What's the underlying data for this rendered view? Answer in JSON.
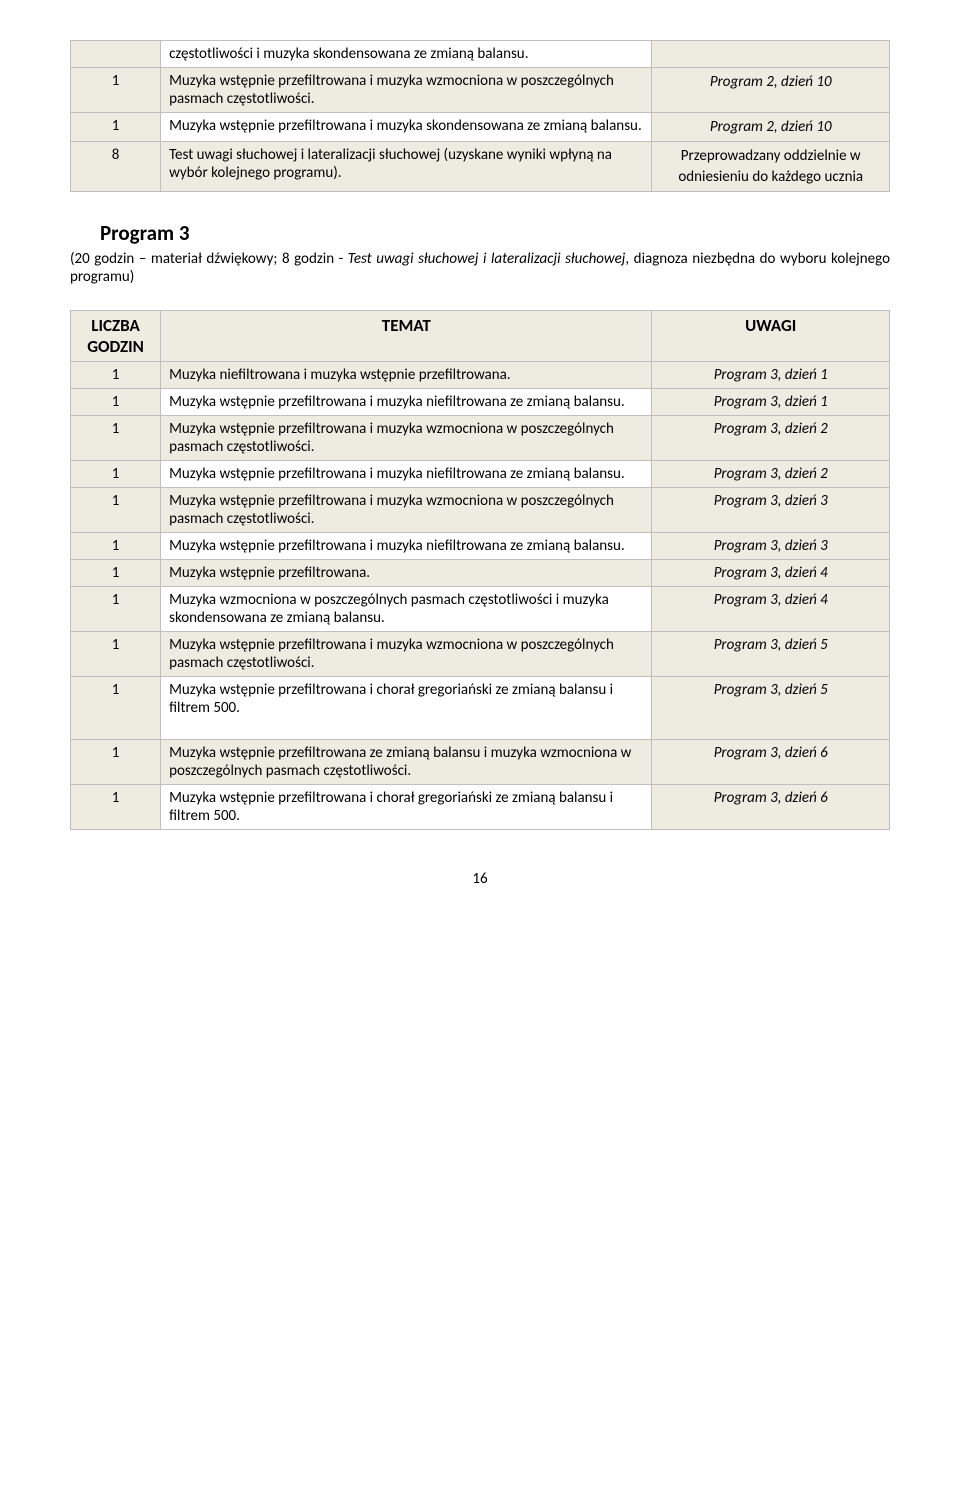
{
  "table1": {
    "rows": [
      {
        "n": "",
        "topic": "częstotliwości i muzyka skondensowana ze zmianą balansu.",
        "note": "",
        "topic_beige": false,
        "note_italic": false
      },
      {
        "n": "1",
        "topic": "Muzyka wstępnie przefiltrowana i muzyka wzmocniona w poszczególnych pasmach częstotliwości.",
        "note": "Program 2, dzień 10",
        "topic_beige": true,
        "note_italic": true
      },
      {
        "n": "1",
        "topic": "Muzyka wstępnie przefiltrowana i muzyka skondensowana ze zmianą balansu.",
        "note": "Program 2, dzień 10",
        "topic_beige": false,
        "note_italic": true
      },
      {
        "n": "8",
        "topic": "Test uwagi słuchowej i lateralizacji słuchowej (uzyskane wyniki wpłyną na wybór kolejnego programu).",
        "note": "Przeprowadzany oddzielnie w odniesieniu do każdego ucznia",
        "topic_beige": true,
        "note_italic": false
      }
    ]
  },
  "section": {
    "title": "Program 3",
    "desc_a": "(20 godzin – materiał dźwiękowy; 8 godzin - ",
    "desc_b": "Test uwagi słuchowej i lateralizacji słuchowej",
    "desc_c": ", diagnoza niezbędna do wyboru kolejnego programu)"
  },
  "table2": {
    "h1": "LICZBA GODZIN",
    "h2": "TEMAT",
    "h3": "UWAGI",
    "rows": [
      {
        "n": "1",
        "topic": "Muzyka niefiltrowana i muzyka wstępnie przefiltrowana.",
        "note": "Program 3, dzień 1",
        "topic_beige": true
      },
      {
        "n": "1",
        "topic": "Muzyka wstępnie przefiltrowana i muzyka niefiltrowana ze zmianą balansu.",
        "note": "Program 3, dzień 1",
        "topic_beige": false
      },
      {
        "n": "1",
        "topic": "Muzyka wstępnie przefiltrowana i muzyka wzmocniona w poszczególnych pasmach częstotliwości.",
        "note": "Program 3, dzień 2",
        "topic_beige": true
      },
      {
        "n": "1",
        "topic": "Muzyka wstępnie przefiltrowana i muzyka niefiltrowana ze zmianą balansu.",
        "note": "Program 3, dzień 2",
        "topic_beige": false
      },
      {
        "n": "1",
        "topic": "Muzyka wstępnie przefiltrowana i muzyka wzmocniona w poszczególnych pasmach częstotliwości.",
        "note": "Program 3, dzień 3",
        "topic_beige": true
      },
      {
        "n": "1",
        "topic": "Muzyka wstępnie przefiltrowana i muzyka niefiltrowana ze zmianą balansu.",
        "note": "Program 3, dzień 3",
        "topic_beige": false
      },
      {
        "n": "1",
        "topic": "Muzyka wstępnie przefiltrowana.",
        "note": "Program 3, dzień 4",
        "topic_beige": true
      },
      {
        "n": "1",
        "topic": "Muzyka wzmocniona w poszczególnych pasmach częstotliwości i muzyka skondensowana ze zmianą balansu.",
        "note": "Program 3, dzień 4",
        "topic_beige": false
      },
      {
        "n": "1",
        "topic": "Muzyka wstępnie przefiltrowana i muzyka wzmocniona w poszczególnych pasmach częstotliwości.",
        "note": "Program 3, dzień 5",
        "topic_beige": true
      },
      {
        "n": "1",
        "topic": "Muzyka wstępnie przefiltrowana i chorał gregoriański ze zmianą balansu i filtrem 500.",
        "note": "Program 3, dzień 5",
        "topic_beige": false,
        "tall": true
      },
      {
        "n": "1",
        "topic": "Muzyka wstępnie przefiltrowana ze zmianą balansu  i muzyka wzmocniona w poszczególnych pasmach częstotliwości.",
        "note": "Program 3, dzień 6",
        "topic_beige": true
      },
      {
        "n": "1",
        "topic": "Muzyka wstępnie przefiltrowana i chorał gregoriański ze zmianą balansu i filtrem 500.",
        "note": "Program 3, dzień 6",
        "topic_beige": false
      }
    ]
  },
  "page": "16"
}
